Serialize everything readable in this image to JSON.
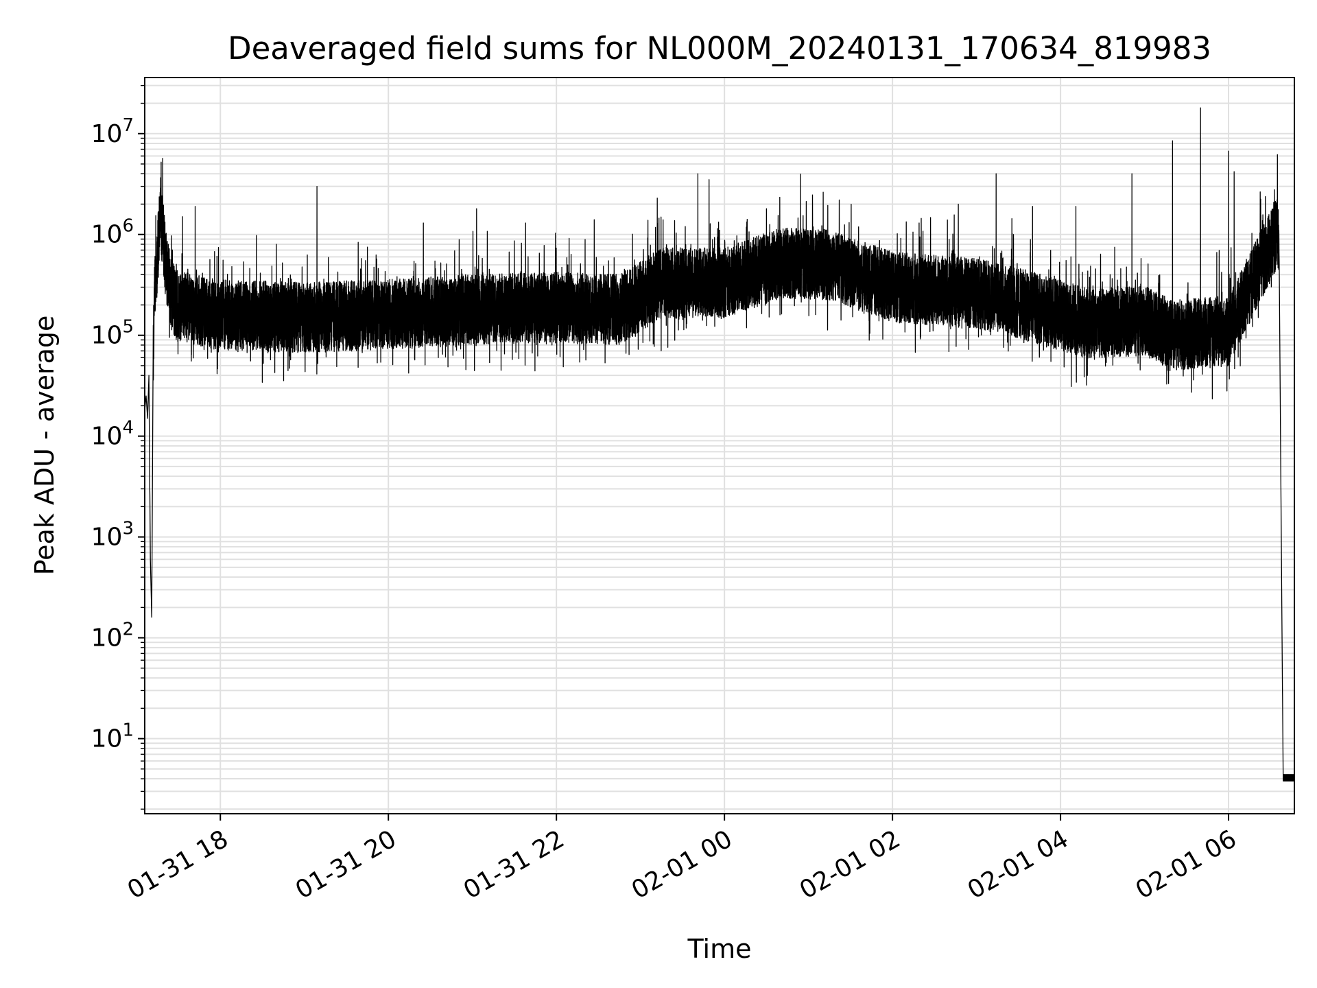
{
  "chart_data": {
    "type": "line",
    "title": "Deaveraged field sums for NL000M_20240131_170634_819983",
    "xlabel": "Time",
    "ylabel": "Peak ADU - average",
    "yscale": "log",
    "ylim": [
      1.8,
      36000000.0
    ],
    "xlim": [
      "2024-01-31 17:06",
      "2024-02-01 06:47"
    ],
    "grid": true,
    "line_color": "#000000",
    "grid_color": "#e0e0e0",
    "x_ticks": [
      {
        "value": "2024-01-31 18:00",
        "label": "01-31 18"
      },
      {
        "value": "2024-01-31 20:00",
        "label": "01-31 20"
      },
      {
        "value": "2024-01-31 22:00",
        "label": "01-31 22"
      },
      {
        "value": "2024-02-01 00:00",
        "label": "02-01 00"
      },
      {
        "value": "2024-02-01 02:00",
        "label": "02-01 02"
      },
      {
        "value": "2024-02-01 04:00",
        "label": "02-01 04"
      },
      {
        "value": "2024-02-01 06:00",
        "label": "02-01 06"
      }
    ],
    "y_ticks": [
      {
        "value": 10,
        "base": "10",
        "exp": "1"
      },
      {
        "value": 100,
        "base": "10",
        "exp": "2"
      },
      {
        "value": 1000,
        "base": "10",
        "exp": "3"
      },
      {
        "value": 10000,
        "base": "10",
        "exp": "4"
      },
      {
        "value": 100000,
        "base": "10",
        "exp": "5"
      },
      {
        "value": 1000000,
        "base": "10",
        "exp": "6"
      },
      {
        "value": 10000000,
        "base": "10",
        "exp": "7"
      }
    ],
    "series": [
      {
        "points": [
          [
            "2024-01-31 17:06",
            2.0
          ],
          [
            "2024-01-31 17:06",
            18000
          ],
          [
            "2024-01-31 17:07",
            25000
          ],
          [
            "2024-01-31 17:08",
            15000
          ],
          [
            "2024-01-31 17:09",
            40000
          ],
          [
            "2024-01-31 17:10",
            600
          ],
          [
            "2024-01-31 17:11",
            160
          ],
          [
            "2024-01-31 17:12",
            60000
          ],
          [
            "2024-01-31 17:13",
            280000
          ],
          [
            "2024-01-31 17:16",
            900000
          ],
          [
            "2024-01-31 17:17",
            1800000
          ],
          [
            "2024-01-31 17:19",
            1000000
          ],
          [
            "2024-01-31 17:21",
            500000
          ],
          [
            "2024-01-31 17:24",
            300000
          ],
          [
            "2024-01-31 17:28",
            200000
          ],
          [
            "2024-01-31 17:40",
            180000
          ],
          [
            "2024-01-31 18:00",
            160000
          ],
          [
            "2024-01-31 19:00",
            150000
          ],
          [
            "2024-01-31 20:00",
            160000
          ],
          [
            "2024-01-31 21:00",
            180000
          ],
          [
            "2024-01-31 22:00",
            190000
          ],
          [
            "2024-01-31 22:45",
            180000
          ],
          [
            "2024-01-31 23:15",
            330000
          ],
          [
            "2024-02-01 00:00",
            330000
          ],
          [
            "2024-02-01 00:40",
            520000
          ],
          [
            "2024-02-01 01:15",
            500000
          ],
          [
            "2024-02-01 02:00",
            300000
          ],
          [
            "2024-02-01 03:00",
            260000
          ],
          [
            "2024-02-01 03:30",
            210000
          ],
          [
            "2024-02-01 04:20",
            130000
          ],
          [
            "2024-02-01 05:00",
            140000
          ],
          [
            "2024-02-01 05:20",
            100000
          ],
          [
            "2024-02-01 06:00",
            110000
          ],
          [
            "2024-02-01 06:20",
            400000
          ],
          [
            "2024-02-01 06:34",
            1000000
          ],
          [
            "2024-02-01 06:36",
            1000000
          ],
          [
            "2024-02-01 06:39",
            4.0
          ],
          [
            "2024-02-01 06:47",
            4.0
          ]
        ],
        "spikes": [
          [
            "2024-01-31 17:33",
            1500000
          ],
          [
            "2024-01-31 17:42",
            1900000
          ],
          [
            "2024-01-31 18:40",
            800000
          ],
          [
            "2024-01-31 19:09",
            3000000
          ],
          [
            "2024-01-31 19:45",
            750000
          ],
          [
            "2024-01-31 20:25",
            1300000
          ],
          [
            "2024-01-31 21:03",
            1800000
          ],
          [
            "2024-01-31 21:38",
            1300000
          ],
          [
            "2024-01-31 22:27",
            1400000
          ],
          [
            "2024-01-31 23:12",
            2300000
          ],
          [
            "2024-01-31 23:32",
            1200000
          ],
          [
            "2024-01-31 23:41",
            4000000
          ],
          [
            "2024-01-31 23:49",
            3500000
          ],
          [
            "2024-02-01 00:30",
            1800000
          ],
          [
            "2024-02-01 01:22",
            2200000
          ],
          [
            "2024-02-01 02:19",
            1300000
          ],
          [
            "2024-02-01 02:47",
            2000000
          ],
          [
            "2024-02-01 03:14",
            4000000
          ],
          [
            "2024-02-01 03:40",
            1900000
          ],
          [
            "2024-02-01 04:11",
            1900000
          ],
          [
            "2024-02-01 04:51",
            4000000
          ],
          [
            "2024-02-01 05:20",
            8500000
          ],
          [
            "2024-02-01 05:40",
            18000000
          ],
          [
            "2024-02-01 06:00",
            6700000
          ],
          [
            "2024-02-01 06:04",
            4200000
          ]
        ]
      }
    ]
  }
}
